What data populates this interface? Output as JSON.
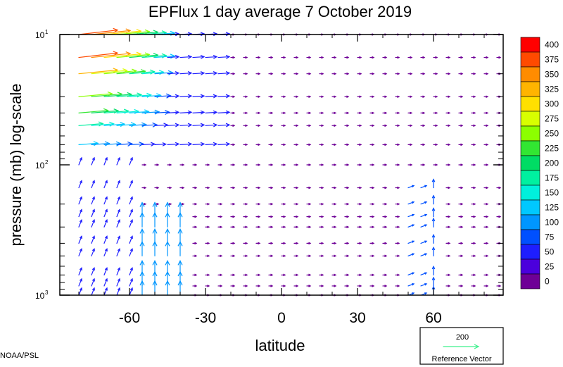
{
  "chart_data": {
    "type": "vector-field",
    "title": "EPFlux  1 day average  7 October   2019",
    "xlabel": "latitude",
    "ylabel": "pressure (mb)  log-scale",
    "xlim": [
      -87.5,
      87.5
    ],
    "ylim": [
      1000,
      10
    ],
    "y_scale": "log",
    "x_ticks": [
      {
        "value": -60,
        "label": "-60"
      },
      {
        "value": -30,
        "label": "-30"
      },
      {
        "value": 0,
        "label": "0"
      },
      {
        "value": 30,
        "label": "30"
      },
      {
        "value": 60,
        "label": "60"
      }
    ],
    "y_ticks": [
      {
        "value": 10,
        "base": "10",
        "exp": "1"
      },
      {
        "value": 100,
        "base": "10",
        "exp": "2"
      },
      {
        "value": 1000,
        "base": "10",
        "exp": "3"
      }
    ],
    "colorbar": {
      "labels": [
        "400",
        "375",
        "350",
        "325",
        "300",
        "275",
        "250",
        "225",
        "200",
        "175",
        "150",
        "125",
        "100",
        "75",
        "50",
        "25",
        "0"
      ],
      "colors": [
        "#ff0000",
        "#ff4a00",
        "#ff8c00",
        "#ffb400",
        "#ffe000",
        "#d8ff00",
        "#8cff00",
        "#32e632",
        "#00dc64",
        "#00f0a0",
        "#00f0dc",
        "#00c8ff",
        "#0096ff",
        "#0050ff",
        "#1e1eff",
        "#4b00dc",
        "#6e0096"
      ]
    },
    "reference_vector": {
      "value": "200",
      "label": "Reference Vector",
      "color": "#3cf08c"
    },
    "footer": "NOAA/PSL",
    "levels": [
      10,
      15,
      20,
      30,
      40,
      50,
      70,
      100,
      150,
      200,
      250,
      300,
      400,
      500,
      700,
      850,
      1000
    ],
    "notable_vectors": [
      {
        "lat": -70,
        "p": 15,
        "magnitude": 400,
        "direction": "equatorward-up"
      },
      {
        "lat": -60,
        "p": 20,
        "magnitude": 300,
        "direction": "equatorward"
      },
      {
        "lat": -60,
        "p": 30,
        "magnitude": 250,
        "direction": "equatorward"
      },
      {
        "lat": -60,
        "p": 50,
        "magnitude": 175,
        "direction": "equatorward"
      },
      {
        "lat": -60,
        "p": 70,
        "magnitude": 125,
        "direction": "equatorward"
      },
      {
        "lat": -50,
        "p": 500,
        "magnitude": 100,
        "direction": "upward"
      },
      {
        "lat": 57,
        "p": 300,
        "magnitude": 75,
        "direction": "upward"
      }
    ]
  }
}
